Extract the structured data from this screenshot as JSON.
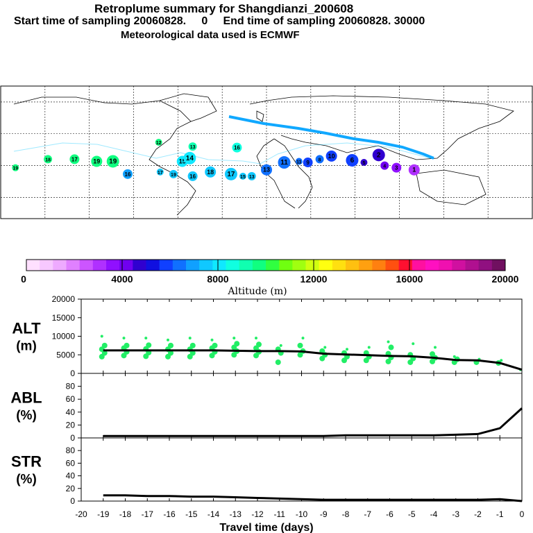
{
  "titles": {
    "line1": "Retroplume summary for Shangdianzi_200608",
    "line2": "Start time of sampling 20060828.     0     End time of sampling 20060828. 30000",
    "line3": "Meteorological data used is ECMWF"
  },
  "colorbar": {
    "label": "Altitude (m)",
    "ticks": [
      "0",
      "4000",
      "8000",
      "12000",
      "16000",
      "20000"
    ],
    "range": [
      0,
      20000
    ],
    "colors": [
      "#ffe0ff",
      "#f7c8ff",
      "#eeaaff",
      "#e080ff",
      "#cc55ff",
      "#b030ff",
      "#9010ff",
      "#7000f0",
      "#3000d0",
      "#1010e0",
      "#1040ff",
      "#1070ff",
      "#10a0ff",
      "#10c8ff",
      "#10e8ff",
      "#10ffe0",
      "#10ffb0",
      "#10ff80",
      "#30ff40",
      "#70ff10",
      "#a0ff10",
      "#d0ff10",
      "#ffff10",
      "#ffe010",
      "#ffc010",
      "#ffa010",
      "#ff8010",
      "#ff5010",
      "#ff1030",
      "#ff10a0",
      "#ff10c0",
      "#f010b0",
      "#d010a0",
      "#b01090",
      "#901080",
      "#701060"
    ]
  },
  "map": {
    "labels": [
      {
        "text": "19",
        "lon": -170,
        "lat": -2,
        "color": "#10ff80"
      },
      {
        "text": "18",
        "lon": -148,
        "lat": 6,
        "color": "#10ff80"
      },
      {
        "text": "17",
        "lon": -130,
        "lat": 6,
        "color": "#10ff80"
      },
      {
        "text": "19",
        "lon": -115,
        "lat": 4,
        "color": "#10ff80"
      },
      {
        "text": "19",
        "lon": -104,
        "lat": 4,
        "color": "#10ff80"
      },
      {
        "text": "12",
        "lon": -73,
        "lat": 22,
        "color": "#10ff80"
      },
      {
        "text": "13",
        "lon": -50,
        "lat": 18,
        "color": "#10ffb0"
      },
      {
        "text": "16",
        "lon": -20,
        "lat": 17,
        "color": "#10ffe0"
      },
      {
        "text": "15",
        "lon": -57,
        "lat": 4,
        "color": "#10e8ff"
      },
      {
        "text": "14",
        "lon": -52,
        "lat": 7,
        "color": "#10e8ff"
      },
      {
        "text": "17",
        "lon": -72,
        "lat": -6,
        "color": "#10c8ff"
      },
      {
        "text": "19",
        "lon": -63,
        "lat": -8,
        "color": "#10c8ff"
      },
      {
        "text": "16",
        "lon": -50,
        "lat": -10,
        "color": "#10c8ff"
      },
      {
        "text": "18",
        "lon": -38,
        "lat": -6,
        "color": "#10c8ff"
      },
      {
        "text": "17",
        "lon": -24,
        "lat": -8,
        "color": "#10c8ff"
      },
      {
        "text": "15",
        "lon": -16,
        "lat": -10,
        "color": "#10c8ff"
      },
      {
        "text": "13",
        "lon": -10,
        "lat": -10,
        "color": "#10c8ff"
      },
      {
        "text": "16",
        "lon": -94,
        "lat": -8,
        "color": "#10a0ff"
      },
      {
        "text": "13",
        "lon": 0,
        "lat": -4,
        "color": "#1070ff"
      },
      {
        "text": "11",
        "lon": 12,
        "lat": 3,
        "color": "#1070ff"
      },
      {
        "text": "11",
        "lon": 22,
        "lat": 4,
        "color": "#1070ff"
      },
      {
        "text": "8",
        "lon": 36,
        "lat": 6,
        "color": "#1070ff"
      },
      {
        "text": "9",
        "lon": 28,
        "lat": 3,
        "color": "#1040ff"
      },
      {
        "text": "10",
        "lon": 44,
        "lat": 9,
        "color": "#1040ff"
      },
      {
        "text": "6",
        "lon": 58,
        "lat": 5,
        "color": "#1040ff"
      },
      {
        "text": "5",
        "lon": 66,
        "lat": 3,
        "color": "#3000d0"
      },
      {
        "text": "4",
        "lon": 80,
        "lat": 0,
        "color": "#7000f0"
      },
      {
        "text": "3",
        "lon": 88,
        "lat": -2,
        "color": "#9010ff"
      },
      {
        "text": "1",
        "lon": 100,
        "lat": -4,
        "color": "#b030ff"
      },
      {
        "text": "2",
        "lon": 76,
        "lat": 10,
        "color": "#3000d0"
      }
    ],
    "track_color": "#10a8ff"
  },
  "panels": {
    "alt": {
      "label1": "ALT",
      "label2": "(m)",
      "yticks": [
        "0",
        "5000",
        "10000",
        "15000",
        "20000"
      ],
      "ylim": [
        0,
        20000
      ]
    },
    "abl": {
      "label1": "ABL",
      "label2": "(%)",
      "yticks": [
        "0",
        "20",
        "40",
        "60",
        "80"
      ],
      "ylim": [
        0,
        100
      ]
    },
    "str": {
      "label1": "STR",
      "label2": "(%)",
      "yticks": [
        "0",
        "20",
        "40",
        "60",
        "80"
      ],
      "ylim": [
        0,
        100
      ]
    }
  },
  "xaxis": {
    "label": "Travel time (days)",
    "ticks": [
      "-20",
      "-19",
      "-18",
      "-17",
      "-16",
      "-15",
      "-14",
      "-13",
      "-12",
      "-11",
      "-10",
      "-9",
      "-8",
      "-7",
      "-6",
      "-5",
      "-4",
      "-3",
      "-2",
      "-1",
      "0"
    ],
    "xlim": [
      -20,
      0
    ]
  },
  "chart_data": {
    "type": "line",
    "title": "Retroplume summary for Shangdianzi_200608",
    "xlabel": "Travel time (days)",
    "series": [
      {
        "name": "ALT (m)",
        "x": [
          -19,
          -18,
          -17,
          -16,
          -15,
          -14,
          -13,
          -12,
          -11,
          -10,
          -9,
          -8,
          -7,
          -6,
          -5,
          -4,
          -3,
          -2,
          -1,
          0
        ],
        "values": [
          6200,
          6200,
          6200,
          6200,
          6200,
          6200,
          6100,
          6000,
          6000,
          5900,
          5300,
          5100,
          4900,
          4700,
          4600,
          4200,
          3600,
          3500,
          2800,
          1000
        ],
        "ylim": [
          0,
          20000
        ]
      },
      {
        "name": "ABL (%)",
        "x": [
          -19,
          -18,
          -17,
          -16,
          -15,
          -14,
          -13,
          -12,
          -11,
          -10,
          -9,
          -8,
          -7,
          -6,
          -5,
          -4,
          -3,
          -2,
          -1,
          0
        ],
        "values": [
          3,
          3,
          3,
          3,
          3,
          3,
          3,
          3,
          3,
          3,
          3,
          4,
          4,
          4,
          4,
          4,
          5,
          6,
          15,
          46
        ],
        "ylim": [
          0,
          100
        ]
      },
      {
        "name": "STR (%)",
        "x": [
          -19,
          -18,
          -17,
          -16,
          -15,
          -14,
          -13,
          -12,
          -11,
          -10,
          -9,
          -8,
          -7,
          -6,
          -5,
          -4,
          -3,
          -2,
          -1,
          0
        ],
        "values": [
          9,
          9,
          8,
          8,
          7,
          7,
          6,
          5,
          4,
          3,
          2,
          2,
          2,
          2,
          2,
          2,
          2,
          2,
          3,
          0
        ],
        "ylim": [
          0,
          100
        ]
      }
    ],
    "alt_clusters": {
      "x": [
        -19,
        -18,
        -17,
        -16,
        -15,
        -14,
        -13,
        -12,
        -11,
        -10,
        -9,
        -8,
        -7,
        -6,
        -5,
        -4,
        -3,
        -2,
        -1,
        0
      ],
      "points": [
        [
          4500,
          5500,
          6500,
          7500,
          10000
        ],
        [
          4800,
          5800,
          6800,
          7500,
          9500
        ],
        [
          4600,
          5600,
          6600,
          7600,
          9500
        ],
        [
          4500,
          5500,
          6500,
          7500,
          9000
        ],
        [
          4500,
          5500,
          6500,
          7500,
          9500
        ],
        [
          4800,
          5800,
          6800,
          7500,
          9000
        ],
        [
          5000,
          6000,
          7000,
          8000,
          9500
        ],
        [
          4800,
          5800,
          6800,
          7800,
          9500
        ],
        [
          3000,
          5500,
          6500,
          7500
        ],
        [
          5000,
          6000,
          7500,
          9500
        ],
        [
          4000,
          5000,
          6000,
          7000
        ],
        [
          3500,
          4500,
          5500,
          6500
        ],
        [
          3500,
          4500,
          5500,
          7000
        ],
        [
          3200,
          4300,
          5300,
          7000,
          8500
        ],
        [
          3000,
          4000,
          5000,
          8000
        ],
        [
          3200,
          4200,
          5200,
          7000
        ],
        [
          3000,
          3800,
          4500
        ],
        [
          3000,
          3800
        ],
        [
          2800,
          3500
        ],
        [
          1000
        ]
      ]
    }
  }
}
